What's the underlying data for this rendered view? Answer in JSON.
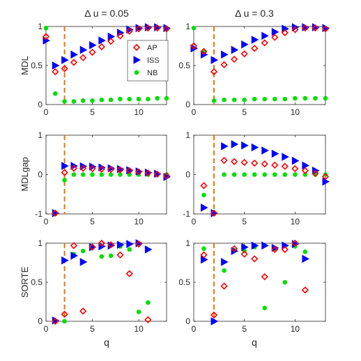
{
  "figure": {
    "xlabel": "q",
    "column_titles": [
      "Δ u = 0.05",
      "Δ u = 0.3"
    ],
    "row_ylabels": [
      "MDL",
      "MDLgap",
      "SORTE"
    ],
    "legend": [
      {
        "label": "AP",
        "marker": "diamond",
        "color": "#ff0000"
      },
      {
        "label": "ISS",
        "marker": "triangle-right",
        "color": "#0000ff"
      },
      {
        "label": "NB",
        "marker": "circle",
        "color": "#00e000"
      }
    ],
    "threshold_line": {
      "x": 2,
      "color": "#e8740c",
      "style": "dashed"
    }
  },
  "chart_data": [
    {
      "type": "scatter",
      "title": "Δ u = 0.05",
      "xlabel": "",
      "ylabel": "MDL",
      "xlim": [
        0,
        13
      ],
      "ylim": [
        0,
        1
      ],
      "xticks": [
        0,
        5,
        10
      ],
      "yticks": [
        0,
        0.5,
        1
      ],
      "ytick_labels": [
        "0",
        "0.5",
        "1"
      ],
      "legend_position": "top-right",
      "grid": false,
      "series": [
        {
          "name": "AP",
          "x": [
            0,
            1,
            2,
            3,
            4,
            5,
            6,
            7,
            8,
            9,
            10,
            11,
            12,
            13
          ],
          "y": [
            0.87,
            0.42,
            0.46,
            0.54,
            0.6,
            0.67,
            0.74,
            0.81,
            0.88,
            0.94,
            0.97,
            0.98,
            0.98,
            0.97
          ]
        },
        {
          "name": "ISS",
          "x": [
            0,
            1,
            2,
            3,
            4,
            5,
            6,
            7,
            8,
            9,
            10,
            11,
            12,
            13
          ],
          "y": [
            0.82,
            0.5,
            0.57,
            0.64,
            0.7,
            0.76,
            0.82,
            0.87,
            0.92,
            0.96,
            0.98,
            0.99,
            0.99,
            0.98
          ]
        },
        {
          "name": "NB",
          "x": [
            0,
            1,
            2,
            3,
            4,
            5,
            6,
            7,
            8,
            9,
            10,
            11,
            12,
            13
          ],
          "y": [
            0.98,
            0.14,
            0.04,
            0.04,
            0.05,
            0.05,
            0.06,
            0.06,
            0.07,
            0.07,
            0.07,
            0.07,
            0.08,
            0.08
          ]
        }
      ]
    },
    {
      "type": "scatter",
      "title": "Δ u = 0.3",
      "xlabel": "",
      "ylabel": "",
      "xlim": [
        0,
        13
      ],
      "ylim": [
        0,
        1
      ],
      "xticks": [
        0,
        5,
        10
      ],
      "yticks": [
        0,
        0.5,
        1
      ],
      "ytick_labels": [
        "0",
        "0.5",
        "1"
      ],
      "grid": false,
      "series": [
        {
          "name": "AP",
          "x": [
            0,
            1,
            2,
            3,
            4,
            5,
            6,
            7,
            8,
            9,
            10,
            11,
            12,
            13
          ],
          "y": [
            0.75,
            0.68,
            0.42,
            0.51,
            0.58,
            0.65,
            0.72,
            0.79,
            0.86,
            0.92,
            0.96,
            0.98,
            0.98,
            0.97
          ]
        },
        {
          "name": "ISS",
          "x": [
            0,
            1,
            2,
            3,
            4,
            5,
            6,
            7,
            8,
            9,
            10,
            11,
            12,
            13
          ],
          "y": [
            0.72,
            0.64,
            0.57,
            0.64,
            0.7,
            0.77,
            0.83,
            0.88,
            0.93,
            0.97,
            0.99,
            0.99,
            0.99,
            0.98
          ]
        },
        {
          "name": "NB",
          "x": [
            0,
            1,
            2,
            3,
            4,
            5,
            6,
            7,
            8,
            9,
            10,
            11,
            12,
            13
          ],
          "y": [
            0.98,
            0.68,
            0.05,
            0.06,
            0.06,
            0.06,
            0.07,
            0.07,
            0.07,
            0.07,
            0.08,
            0.08,
            0.08,
            0.08
          ]
        }
      ]
    },
    {
      "type": "scatter",
      "title": "",
      "xlabel": "",
      "ylabel": "MDLgap",
      "xlim": [
        0,
        13
      ],
      "ylim": [
        -1,
        1
      ],
      "xticks": [
        0,
        5,
        10
      ],
      "yticks": [
        -1,
        0,
        1
      ],
      "ytick_labels": [
        "-1",
        "0",
        "1"
      ],
      "grid": false,
      "series": [
        {
          "name": "AP",
          "x": [
            1,
            2,
            3,
            4,
            5,
            6,
            7,
            8,
            9,
            10,
            11,
            12,
            13
          ],
          "y": [
            -0.98,
            0.05,
            0.16,
            0.16,
            0.15,
            0.14,
            0.13,
            0.12,
            0.1,
            0.07,
            0.04,
            0.01,
            -0.03
          ]
        },
        {
          "name": "ISS",
          "x": [
            1,
            2,
            3,
            4,
            5,
            6,
            7,
            8,
            9,
            10,
            11,
            12,
            13
          ],
          "y": [
            -0.98,
            0.22,
            0.22,
            0.21,
            0.2,
            0.18,
            0.16,
            0.14,
            0.11,
            0.08,
            0.05,
            0.02,
            -0.06
          ]
        },
        {
          "name": "NB",
          "x": [
            1,
            2,
            3,
            4,
            5,
            6,
            7,
            8,
            9,
            10,
            11,
            12,
            13
          ],
          "y": [
            -1.0,
            -0.14,
            0.0,
            0.0,
            0.0,
            0.0,
            0.0,
            0.0,
            0.0,
            0.0,
            0.0,
            0.0,
            0.0
          ]
        }
      ]
    },
    {
      "type": "scatter",
      "title": "",
      "xlabel": "",
      "ylabel": "",
      "xlim": [
        0,
        13
      ],
      "ylim": [
        -1,
        1
      ],
      "xticks": [
        0,
        5,
        10
      ],
      "yticks": [
        -1,
        0,
        1
      ],
      "ytick_labels": [
        "-1",
        "0",
        "1"
      ],
      "grid": false,
      "series": [
        {
          "name": "AP",
          "x": [
            1,
            2,
            3,
            4,
            5,
            6,
            7,
            8,
            9,
            10,
            11,
            12,
            13
          ],
          "y": [
            -0.28,
            -0.98,
            0.36,
            0.33,
            0.31,
            0.29,
            0.27,
            0.24,
            0.21,
            0.15,
            0.1,
            0.03,
            -0.05
          ]
        },
        {
          "name": "ISS",
          "x": [
            1,
            2,
            3,
            4,
            5,
            6,
            7,
            8,
            9,
            10,
            11,
            12,
            13
          ],
          "y": [
            -0.84,
            -0.98,
            0.72,
            0.77,
            0.74,
            0.69,
            0.61,
            0.53,
            0.45,
            0.35,
            0.23,
            0.1,
            -0.18
          ]
        },
        {
          "name": "NB",
          "x": [
            1,
            2,
            3,
            4,
            5,
            6,
            7,
            8,
            9,
            10,
            11,
            12,
            13
          ],
          "y": [
            -0.52,
            -1.0,
            0.0,
            0.0,
            0.0,
            0.0,
            0.0,
            0.0,
            0.0,
            0.0,
            0.0,
            0.0,
            0.0
          ]
        }
      ]
    },
    {
      "type": "scatter",
      "title": "",
      "xlabel": "q",
      "ylabel": "SORTE",
      "xlim": [
        0,
        13
      ],
      "ylim": [
        0,
        1
      ],
      "xticks": [
        0,
        5,
        10
      ],
      "yticks": [
        0,
        0.5,
        1
      ],
      "ytick_labels": [
        "0",
        "0.5",
        "1"
      ],
      "grid": false,
      "series": [
        {
          "name": "AP",
          "x": [
            1,
            2,
            3,
            4,
            5,
            6,
            7,
            8,
            9,
            10,
            11
          ],
          "y": [
            0.0,
            0.09,
            0.97,
            0.13,
            0.95,
            1.0,
            0.98,
            0.85,
            0.61,
            0.99,
            0.02
          ]
        },
        {
          "name": "ISS",
          "x": [
            1,
            2,
            3,
            4,
            5,
            6,
            7,
            8,
            9,
            10,
            11
          ],
          "y": [
            0.01,
            0.78,
            0.84,
            0.76,
            0.95,
            0.96,
            0.97,
            0.98,
            0.99,
            1.0,
            0.92
          ]
        },
        {
          "name": "NB",
          "x": [
            1,
            2,
            3,
            4,
            5,
            6,
            7,
            8,
            9,
            10,
            11
          ],
          "y": [
            0.0,
            0.0,
            0.86,
            0.9,
            0.96,
            0.83,
            0.84,
            0.96,
            0.92,
            0.12,
            0.24
          ]
        }
      ]
    },
    {
      "type": "scatter",
      "title": "",
      "xlabel": "q",
      "ylabel": "",
      "xlim": [
        0,
        13
      ],
      "ylim": [
        0,
        1
      ],
      "xticks": [
        0,
        5,
        10
      ],
      "yticks": [
        0,
        0.5,
        1
      ],
      "ytick_labels": [
        "0",
        "0.5",
        "1"
      ],
      "grid": false,
      "series": [
        {
          "name": "AP",
          "x": [
            1,
            2,
            3,
            4,
            5,
            6,
            7,
            8,
            9,
            10,
            11
          ],
          "y": [
            0.85,
            0.08,
            0.45,
            0.93,
            0.86,
            0.8,
            0.57,
            0.92,
            0.92,
            1.0,
            0.4
          ]
        },
        {
          "name": "ISS",
          "x": [
            1,
            2,
            3,
            4,
            5,
            6,
            7,
            8,
            9,
            10,
            11
          ],
          "y": [
            0.79,
            0.0,
            0.76,
            0.9,
            0.95,
            0.97,
            0.97,
            0.94,
            0.97,
            0.99,
            0.8
          ]
        },
        {
          "name": "NB",
          "x": [
            1,
            2,
            3,
            4,
            5,
            6,
            7,
            8,
            9,
            10,
            11
          ],
          "y": [
            0.93,
            0.0,
            0.65,
            0.91,
            0.9,
            0.95,
            0.17,
            0.93,
            0.5,
            0.96,
            0.89
          ]
        }
      ]
    }
  ]
}
